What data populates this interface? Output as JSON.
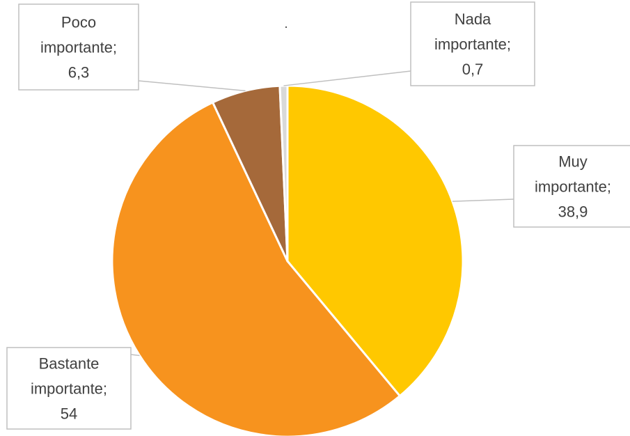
{
  "chart_data": {
    "type": "pie",
    "title": "",
    "slices": [
      {
        "label_lines": [
          "Muy",
          "importante;",
          "38,9"
        ],
        "value": 38.9,
        "color": "#FFC800"
      },
      {
        "label_lines": [
          "Bastante",
          "importante;",
          "54"
        ],
        "value": 54,
        "color": "#F7931E"
      },
      {
        "label_lines": [
          "Poco",
          "importante;",
          "6,3"
        ],
        "value": 6.3,
        "color": "#A5693A"
      },
      {
        "label_lines": [
          "Nada",
          "importante;",
          "0,7"
        ],
        "value": 0.7,
        "color": "#D9D9D9"
      }
    ],
    "start_angle_deg": 0,
    "direction": "clockwise",
    "legend": "none",
    "data_labels": "callouts"
  }
}
